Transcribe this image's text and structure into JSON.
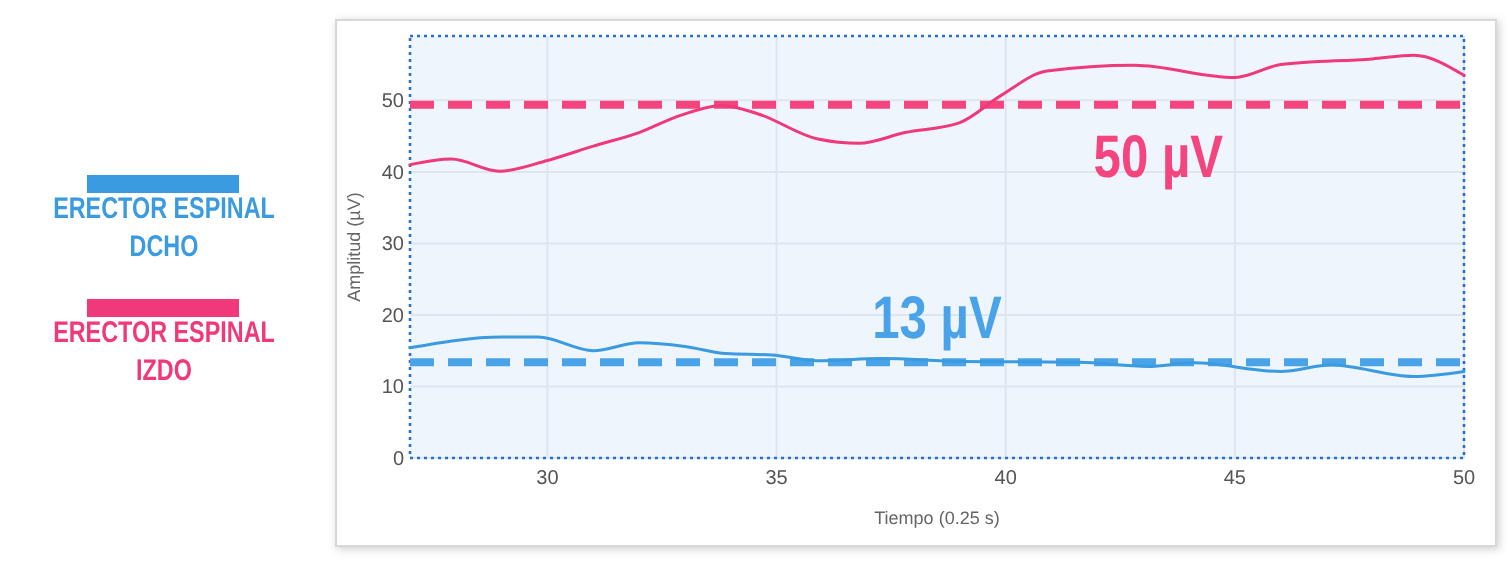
{
  "chart_data": {
    "type": "line",
    "xlabel": "Tiempo (0.25 s)",
    "ylabel": "Amplitud (µV)",
    "xlim": [
      27,
      50
    ],
    "xticks": [
      30,
      35,
      40,
      45,
      50
    ],
    "ylim": [
      0,
      59
    ],
    "yticks": [
      0,
      10,
      20,
      30,
      40,
      50
    ],
    "grid": true,
    "legend": "left",
    "line_style": "solid",
    "marker": "none",
    "series": [
      {
        "name": "ERECTOR ESPINAL DCHO",
        "color": "#3a9be0",
        "x": [
          27,
          29,
          29.8,
          31,
          32,
          33,
          33.9,
          34.9,
          35.9,
          37.3,
          39,
          41.6,
          43.1,
          44.1,
          46,
          47.1,
          48.9,
          50
        ],
        "values": [
          15.4,
          16.9,
          16.9,
          15.0,
          16.1,
          15.6,
          14.6,
          14.4,
          13.6,
          13.9,
          13.5,
          13.4,
          12.8,
          13.3,
          12.1,
          13.0,
          11.4,
          12.1
        ]
      },
      {
        "name": "ERECTOR ESPINAL IZDO",
        "color": "#f0397a",
        "x": [
          27,
          27.9,
          28.95,
          30,
          31,
          32,
          32.9,
          33.8,
          34.6,
          35.9,
          36.8,
          37.8,
          39,
          39.9,
          40.9,
          42.8,
          45,
          46,
          48,
          48.9,
          50
        ],
        "values": [
          41.0,
          41.8,
          40.1,
          41.6,
          43.6,
          45.5,
          47.9,
          49.3,
          48.1,
          44.6,
          44.0,
          45.5,
          46.9,
          50.7,
          54.1,
          54.9,
          53.2,
          55.0,
          55.8,
          56.3,
          53.5
        ]
      }
    ],
    "ref_lines": [
      {
        "axis": "y",
        "value": 49.4,
        "label": "50 µV",
        "color": "#f5457f",
        "line_style": "dashed"
      },
      {
        "axis": "y",
        "value": 13.4,
        "label": "13 µV",
        "color": "#4aa3e8",
        "line_style": "dashed"
      }
    ]
  }
}
